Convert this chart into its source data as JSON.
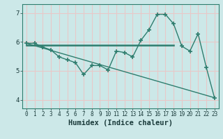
{
  "xlabel": "Humidex (Indice chaleur)",
  "background_color": "#cce8e8",
  "grid_color": "#e8c8c8",
  "line_color": "#2e7d6e",
  "xlim": [
    -0.5,
    23.5
  ],
  "ylim": [
    3.7,
    7.3
  ],
  "yticks": [
    4,
    5,
    6,
    7
  ],
  "xticks": [
    0,
    1,
    2,
    3,
    4,
    5,
    6,
    7,
    8,
    9,
    10,
    11,
    12,
    13,
    14,
    15,
    16,
    17,
    18,
    19,
    20,
    21,
    22,
    23
  ],
  "curve1_x": [
    0,
    1,
    2,
    3,
    4,
    5,
    6,
    7,
    8,
    9,
    10,
    11,
    12,
    13,
    14,
    15,
    16,
    17,
    18,
    19,
    20,
    21,
    22,
    23
  ],
  "curve1_y": [
    5.95,
    5.95,
    5.82,
    5.72,
    5.48,
    5.38,
    5.28,
    4.87,
    5.18,
    5.18,
    5.03,
    5.68,
    5.63,
    5.48,
    6.05,
    6.42,
    6.95,
    6.95,
    6.62,
    5.85,
    5.68,
    6.28,
    5.12,
    4.07
  ],
  "curve2_x": [
    0,
    18
  ],
  "curve2_y": [
    5.88,
    5.88
  ],
  "curve3_x": [
    0,
    23
  ],
  "curve3_y": [
    5.95,
    4.07
  ]
}
